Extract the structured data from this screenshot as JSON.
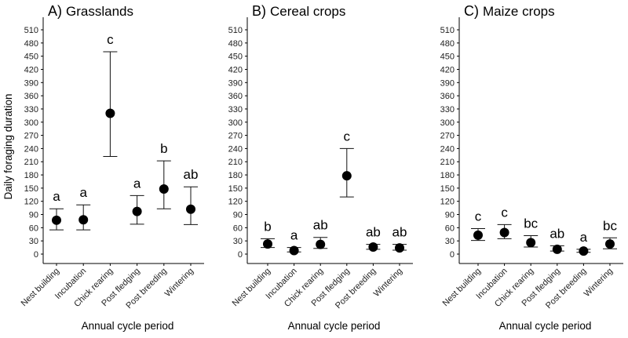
{
  "figure": {
    "ylabel": "Daily foraging duration",
    "y_ticks": [
      0,
      30,
      60,
      90,
      120,
      150,
      180,
      210,
      240,
      270,
      300,
      330,
      360,
      390,
      420,
      450,
      480,
      510
    ]
  },
  "chart_data": [
    {
      "type": "scatter",
      "panel_label": "A)",
      "title": "Grasslands",
      "xlabel": "Annual cycle period",
      "ylabel": "Daily foraging duration",
      "ylim": [
        0,
        510
      ],
      "categories": [
        "Nest building",
        "Incubation",
        "Chick rearing",
        "Post fledging",
        "Post breeding",
        "Wintering"
      ],
      "values": [
        77,
        78,
        320,
        97,
        148,
        102
      ],
      "error_low": [
        55,
        55,
        222,
        68,
        103,
        67
      ],
      "error_high": [
        103,
        112,
        460,
        133,
        212,
        153
      ],
      "significance": [
        "a",
        "a",
        "c",
        "a",
        "b",
        "ab"
      ]
    },
    {
      "type": "scatter",
      "panel_label": "B)",
      "title": "Cereal crops",
      "xlabel": "Annual cycle period",
      "ylabel": "",
      "ylim": [
        0,
        510
      ],
      "categories": [
        "Nest building",
        "Incubation",
        "Chick rearing",
        "Post fledging",
        "Post breeding",
        "Wintering"
      ],
      "values": [
        23,
        8,
        22,
        178,
        16,
        14
      ],
      "error_low": [
        15,
        5,
        13,
        130,
        11,
        9
      ],
      "error_high": [
        35,
        15,
        38,
        240,
        22,
        22
      ],
      "significance": [
        "b",
        "a",
        "ab",
        "c",
        "ab",
        "ab"
      ]
    },
    {
      "type": "scatter",
      "panel_label": "C)",
      "title": "Maize crops",
      "xlabel": "Annual cycle period",
      "ylabel": "",
      "ylim": [
        0,
        510
      ],
      "categories": [
        "Nest building",
        "Incubation",
        "Chick rearing",
        "Post fledging",
        "Post breeding",
        "Wintering"
      ],
      "values": [
        43,
        49,
        26,
        11,
        7,
        23
      ],
      "error_low": [
        31,
        35,
        16,
        7,
        4,
        12
      ],
      "error_high": [
        58,
        67,
        42,
        19,
        11,
        37
      ],
      "significance": [
        "c",
        "c",
        "bc",
        "ab",
        "a",
        "bc"
      ]
    }
  ]
}
